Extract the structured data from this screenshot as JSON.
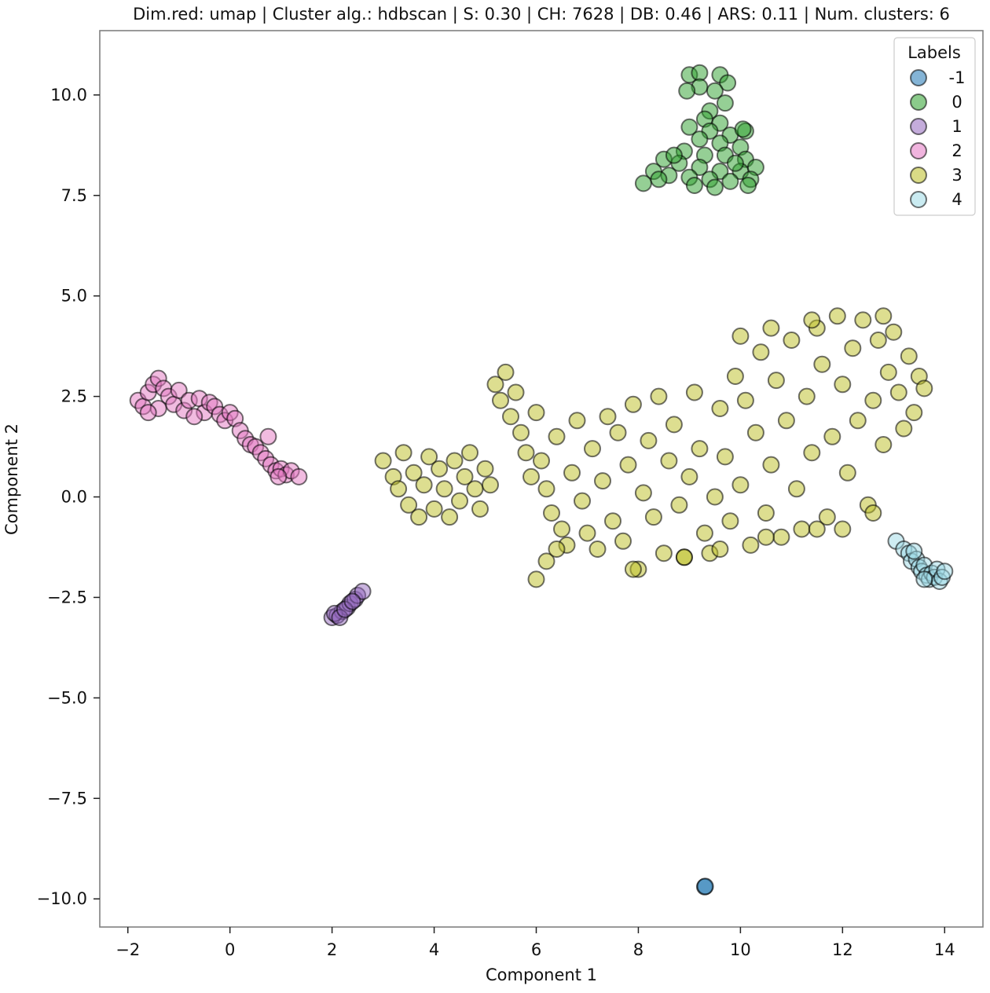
{
  "chart_data": {
    "type": "scatter",
    "title": "Dim.red: umap | Cluster alg.: hdbscan | S: 0.30 | CH: 7628 | DB: 0.46 | ARS:  0.11 | Num. clusters: 6",
    "xlabel": "Component 1",
    "ylabel": "Component 2",
    "xlim": [
      -2.55,
      14.75
    ],
    "ylim": [
      -10.7,
      11.6
    ],
    "xticks": [
      -2,
      0,
      2,
      4,
      6,
      8,
      10,
      12,
      14
    ],
    "xtick_labels": [
      "−2",
      "0",
      "2",
      "4",
      "6",
      "8",
      "10",
      "12",
      "14"
    ],
    "yticks": [
      -10.0,
      -7.5,
      -5.0,
      -2.5,
      0.0,
      2.5,
      5.0,
      7.5,
      10.0
    ],
    "ytick_labels": [
      "−10.0",
      "−7.5",
      "−5.0",
      "−2.5",
      "0.0",
      "2.5",
      "5.0",
      "7.5",
      "10.0"
    ],
    "grid": false,
    "legend": {
      "title": "Labels",
      "placement": "top-right"
    },
    "series": [
      {
        "name": "-1",
        "color": "#1f77b4",
        "points": [
          [
            9.3,
            -9.7
          ],
          [
            9.31,
            -9.69
          ]
        ]
      },
      {
        "name": "0",
        "color": "#2ca02c",
        "points": [
          [
            9.0,
            10.5
          ],
          [
            9.2,
            10.55
          ],
          [
            9.6,
            10.5
          ],
          [
            9.75,
            10.3
          ],
          [
            9.2,
            10.2
          ],
          [
            9.5,
            10.1
          ],
          [
            9.7,
            9.8
          ],
          [
            9.4,
            9.6
          ],
          [
            9.3,
            9.4
          ],
          [
            9.6,
            9.3
          ],
          [
            9.0,
            9.2
          ],
          [
            9.4,
            9.1
          ],
          [
            9.8,
            9.0
          ],
          [
            10.1,
            9.1
          ],
          [
            9.2,
            8.9
          ],
          [
            9.6,
            8.8
          ],
          [
            10.0,
            8.7
          ],
          [
            8.9,
            8.6
          ],
          [
            9.3,
            8.5
          ],
          [
            9.7,
            8.5
          ],
          [
            10.1,
            8.4
          ],
          [
            8.5,
            8.4
          ],
          [
            8.8,
            8.3
          ],
          [
            9.2,
            8.2
          ],
          [
            9.6,
            8.1
          ],
          [
            10.0,
            8.1
          ],
          [
            10.3,
            8.2
          ],
          [
            8.3,
            8.1
          ],
          [
            8.6,
            8.0
          ],
          [
            9.0,
            7.95
          ],
          [
            9.4,
            7.9
          ],
          [
            9.8,
            7.85
          ],
          [
            10.2,
            7.9
          ],
          [
            8.1,
            7.8
          ],
          [
            8.4,
            7.9
          ],
          [
            9.1,
            7.75
          ],
          [
            9.5,
            7.7
          ],
          [
            10.15,
            7.75
          ],
          [
            8.7,
            8.5
          ],
          [
            9.9,
            8.3
          ],
          [
            10.05,
            9.15
          ],
          [
            8.95,
            10.1
          ]
        ]
      },
      {
        "name": "1",
        "color": "#9467bd",
        "points": [
          [
            2.0,
            -3.0
          ],
          [
            2.1,
            -2.95
          ],
          [
            2.2,
            -2.85
          ],
          [
            2.3,
            -2.75
          ],
          [
            2.35,
            -2.65
          ],
          [
            2.45,
            -2.55
          ],
          [
            2.5,
            -2.45
          ],
          [
            2.6,
            -2.35
          ],
          [
            2.05,
            -2.9
          ],
          [
            2.15,
            -3.0
          ],
          [
            2.25,
            -2.8
          ],
          [
            2.4,
            -2.6
          ]
        ]
      },
      {
        "name": "2",
        "color": "#e377c2",
        "points": [
          [
            -1.8,
            2.4
          ],
          [
            -1.7,
            2.25
          ],
          [
            -1.6,
            2.6
          ],
          [
            -1.5,
            2.8
          ],
          [
            -1.4,
            2.95
          ],
          [
            -1.3,
            2.7
          ],
          [
            -1.2,
            2.5
          ],
          [
            -1.1,
            2.3
          ],
          [
            -1.0,
            2.65
          ],
          [
            -0.9,
            2.15
          ],
          [
            -0.8,
            2.4
          ],
          [
            -0.6,
            2.45
          ],
          [
            -0.5,
            2.1
          ],
          [
            -0.4,
            2.35
          ],
          [
            -0.3,
            2.25
          ],
          [
            -0.2,
            2.05
          ],
          [
            -0.1,
            1.9
          ],
          [
            0.0,
            2.1
          ],
          [
            0.1,
            1.95
          ],
          [
            0.2,
            1.65
          ],
          [
            0.3,
            1.45
          ],
          [
            0.4,
            1.3
          ],
          [
            0.5,
            1.25
          ],
          [
            0.6,
            1.1
          ],
          [
            0.7,
            0.95
          ],
          [
            0.75,
            1.5
          ],
          [
            0.8,
            0.8
          ],
          [
            0.9,
            0.65
          ],
          [
            1.0,
            0.7
          ],
          [
            1.1,
            0.55
          ],
          [
            1.2,
            0.65
          ],
          [
            1.35,
            0.5
          ],
          [
            -1.4,
            2.2
          ],
          [
            -1.6,
            2.1
          ],
          [
            -0.7,
            2.0
          ],
          [
            0.95,
            0.5
          ]
        ]
      },
      {
        "name": "3",
        "color": "#bcbd22",
        "points": [
          [
            3.0,
            0.9
          ],
          [
            3.2,
            0.5
          ],
          [
            3.4,
            1.1
          ],
          [
            3.3,
            0.2
          ],
          [
            3.5,
            -0.2
          ],
          [
            3.6,
            0.6
          ],
          [
            3.7,
            -0.5
          ],
          [
            3.8,
            0.3
          ],
          [
            3.9,
            1.0
          ],
          [
            4.0,
            -0.3
          ],
          [
            4.1,
            0.7
          ],
          [
            4.2,
            0.2
          ],
          [
            4.3,
            -0.5
          ],
          [
            4.4,
            0.9
          ],
          [
            4.5,
            -0.1
          ],
          [
            4.6,
            0.5
          ],
          [
            4.7,
            1.1
          ],
          [
            4.8,
            0.2
          ],
          [
            4.9,
            -0.3
          ],
          [
            5.0,
            0.7
          ],
          [
            5.1,
            0.3
          ],
          [
            5.2,
            2.8
          ],
          [
            5.3,
            2.4
          ],
          [
            5.4,
            3.1
          ],
          [
            5.5,
            2.0
          ],
          [
            5.6,
            2.6
          ],
          [
            5.7,
            1.6
          ],
          [
            5.8,
            1.1
          ],
          [
            5.9,
            0.5
          ],
          [
            6.0,
            2.1
          ],
          [
            6.1,
            0.9
          ],
          [
            6.2,
            0.2
          ],
          [
            6.3,
            -0.4
          ],
          [
            6.4,
            1.5
          ],
          [
            6.5,
            -0.8
          ],
          [
            6.6,
            -1.2
          ],
          [
            6.7,
            0.6
          ],
          [
            6.8,
            1.9
          ],
          [
            6.9,
            -0.1
          ],
          [
            7.0,
            -0.9
          ],
          [
            7.1,
            1.2
          ],
          [
            7.2,
            -1.3
          ],
          [
            7.3,
            0.4
          ],
          [
            7.4,
            2.0
          ],
          [
            7.5,
            -0.6
          ],
          [
            7.6,
            1.6
          ],
          [
            7.7,
            -1.1
          ],
          [
            7.8,
            0.8
          ],
          [
            7.9,
            2.3
          ],
          [
            8.0,
            -1.8
          ],
          [
            8.1,
            0.1
          ],
          [
            8.2,
            1.4
          ],
          [
            8.3,
            -0.5
          ],
          [
            8.4,
            2.5
          ],
          [
            8.5,
            -1.4
          ],
          [
            8.6,
            0.9
          ],
          [
            8.7,
            1.8
          ],
          [
            8.8,
            -0.2
          ],
          [
            8.9,
            -1.5
          ],
          [
            9.0,
            0.5
          ],
          [
            9.1,
            2.6
          ],
          [
            9.2,
            1.2
          ],
          [
            9.3,
            -0.9
          ],
          [
            9.4,
            -1.4
          ],
          [
            9.5,
            0.0
          ],
          [
            9.6,
            2.2
          ],
          [
            9.7,
            1.0
          ],
          [
            9.8,
            -0.6
          ],
          [
            9.9,
            3.0
          ],
          [
            10.0,
            0.3
          ],
          [
            10.1,
            2.4
          ],
          [
            10.2,
            -1.2
          ],
          [
            10.3,
            1.6
          ],
          [
            10.4,
            3.6
          ],
          [
            10.5,
            -0.4
          ],
          [
            10.6,
            0.8
          ],
          [
            10.7,
            2.9
          ],
          [
            10.8,
            -1.0
          ],
          [
            10.9,
            1.9
          ],
          [
            11.0,
            3.9
          ],
          [
            11.1,
            0.2
          ],
          [
            11.2,
            -0.8
          ],
          [
            11.3,
            2.5
          ],
          [
            11.4,
            1.1
          ],
          [
            11.5,
            4.2
          ],
          [
            11.6,
            3.3
          ],
          [
            11.7,
            -0.5
          ],
          [
            11.8,
            1.5
          ],
          [
            11.9,
            4.5
          ],
          [
            12.0,
            2.8
          ],
          [
            12.1,
            0.6
          ],
          [
            12.2,
            3.7
          ],
          [
            12.3,
            1.9
          ],
          [
            12.4,
            4.4
          ],
          [
            12.5,
            -0.2
          ],
          [
            12.6,
            2.4
          ],
          [
            12.7,
            3.9
          ],
          [
            12.8,
            1.3
          ],
          [
            12.9,
            3.1
          ],
          [
            13.0,
            4.1
          ],
          [
            13.1,
            2.6
          ],
          [
            13.2,
            1.7
          ],
          [
            13.3,
            3.5
          ],
          [
            13.4,
            2.1
          ],
          [
            13.5,
            3.0
          ],
          [
            13.6,
            2.7
          ],
          [
            10.0,
            4.0
          ],
          [
            10.6,
            4.2
          ],
          [
            11.4,
            4.4
          ],
          [
            12.8,
            4.5
          ],
          [
            6.0,
            -2.05
          ],
          [
            6.2,
            -1.6
          ],
          [
            6.4,
            -1.3
          ],
          [
            7.9,
            -1.8
          ],
          [
            8.9,
            -1.5
          ],
          [
            9.6,
            -1.3
          ],
          [
            10.5,
            -1.0
          ],
          [
            11.5,
            -0.8
          ],
          [
            12.0,
            -0.8
          ],
          [
            12.6,
            -0.4
          ]
        ]
      },
      {
        "name": "4",
        "color": "#9edae5",
        "points": [
          [
            13.05,
            -1.1
          ],
          [
            13.2,
            -1.3
          ],
          [
            13.3,
            -1.4
          ],
          [
            13.35,
            -1.6
          ],
          [
            13.45,
            -1.55
          ],
          [
            13.5,
            -1.75
          ],
          [
            13.55,
            -1.85
          ],
          [
            13.6,
            -1.7
          ],
          [
            13.65,
            -1.95
          ],
          [
            13.7,
            -2.05
          ],
          [
            13.75,
            -1.9
          ],
          [
            13.8,
            -2.0
          ],
          [
            13.85,
            -1.8
          ],
          [
            13.9,
            -2.1
          ],
          [
            13.95,
            -2.0
          ],
          [
            14.0,
            -1.85
          ],
          [
            13.4,
            -1.35
          ],
          [
            13.6,
            -2.05
          ]
        ]
      }
    ]
  }
}
